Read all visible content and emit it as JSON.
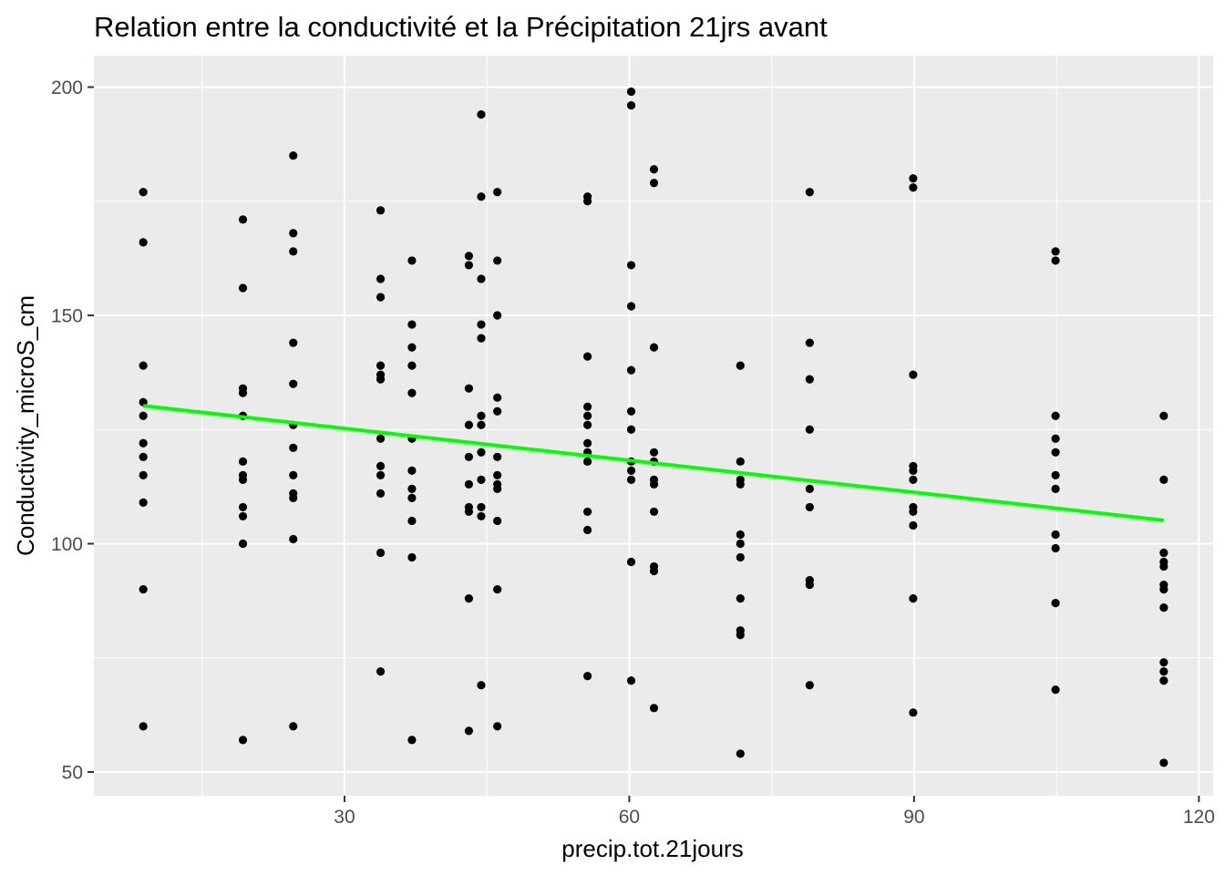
{
  "chart_data": {
    "type": "scatter",
    "title": "Relation entre la conductivité et la Précipitation 21jrs avant",
    "xlabel": "precip.tot.21jours",
    "ylabel": "Conductivity_microS_cm",
    "xlim": [
      3.6,
      121.5
    ],
    "ylim": [
      44.8,
      206.9
    ],
    "x_ticks": [
      30,
      60,
      90,
      120
    ],
    "y_ticks": [
      50,
      100,
      150,
      200
    ],
    "x_tick_labels": [
      "30",
      "60",
      "90",
      "120"
    ],
    "y_tick_labels": [
      "50",
      "100",
      "150",
      "200"
    ],
    "grid": true,
    "panel_background": "#ebebeb",
    "grid_color": "#ffffff",
    "point_color": "#000000",
    "fit_color": "#00ff00",
    "points": [
      {
        "x": 8.8,
        "y": 177
      },
      {
        "x": 8.8,
        "y": 166
      },
      {
        "x": 8.8,
        "y": 139
      },
      {
        "x": 8.8,
        "y": 131
      },
      {
        "x": 8.8,
        "y": 128
      },
      {
        "x": 8.8,
        "y": 122
      },
      {
        "x": 8.8,
        "y": 119
      },
      {
        "x": 8.8,
        "y": 115
      },
      {
        "x": 8.8,
        "y": 109
      },
      {
        "x": 8.8,
        "y": 90
      },
      {
        "x": 8.8,
        "y": 60
      },
      {
        "x": 19.3,
        "y": 171
      },
      {
        "x": 19.3,
        "y": 156
      },
      {
        "x": 19.3,
        "y": 134
      },
      {
        "x": 19.3,
        "y": 133
      },
      {
        "x": 19.3,
        "y": 128
      },
      {
        "x": 19.3,
        "y": 118
      },
      {
        "x": 19.3,
        "y": 115
      },
      {
        "x": 19.3,
        "y": 114
      },
      {
        "x": 19.3,
        "y": 108
      },
      {
        "x": 19.3,
        "y": 106
      },
      {
        "x": 19.3,
        "y": 100
      },
      {
        "x": 19.3,
        "y": 57
      },
      {
        "x": 24.6,
        "y": 185
      },
      {
        "x": 24.6,
        "y": 168
      },
      {
        "x": 24.6,
        "y": 164
      },
      {
        "x": 24.6,
        "y": 144
      },
      {
        "x": 24.6,
        "y": 135
      },
      {
        "x": 24.6,
        "y": 126
      },
      {
        "x": 24.6,
        "y": 121
      },
      {
        "x": 24.6,
        "y": 115
      },
      {
        "x": 24.6,
        "y": 111
      },
      {
        "x": 24.6,
        "y": 110
      },
      {
        "x": 24.6,
        "y": 101
      },
      {
        "x": 24.6,
        "y": 60
      },
      {
        "x": 33.8,
        "y": 173
      },
      {
        "x": 33.8,
        "y": 158
      },
      {
        "x": 33.8,
        "y": 154
      },
      {
        "x": 33.8,
        "y": 139
      },
      {
        "x": 33.8,
        "y": 137
      },
      {
        "x": 33.8,
        "y": 136
      },
      {
        "x": 33.8,
        "y": 123
      },
      {
        "x": 33.8,
        "y": 117
      },
      {
        "x": 33.8,
        "y": 115
      },
      {
        "x": 33.8,
        "y": 111
      },
      {
        "x": 33.8,
        "y": 98
      },
      {
        "x": 33.8,
        "y": 72
      },
      {
        "x": 37.1,
        "y": 162
      },
      {
        "x": 37.1,
        "y": 148
      },
      {
        "x": 37.1,
        "y": 143
      },
      {
        "x": 37.1,
        "y": 139
      },
      {
        "x": 37.1,
        "y": 133
      },
      {
        "x": 37.1,
        "y": 123
      },
      {
        "x": 37.1,
        "y": 116
      },
      {
        "x": 37.1,
        "y": 112
      },
      {
        "x": 37.1,
        "y": 110
      },
      {
        "x": 37.1,
        "y": 105
      },
      {
        "x": 37.1,
        "y": 97
      },
      {
        "x": 37.1,
        "y": 57
      },
      {
        "x": 43.1,
        "y": 163
      },
      {
        "x": 43.1,
        "y": 161
      },
      {
        "x": 43.1,
        "y": 134
      },
      {
        "x": 43.1,
        "y": 126
      },
      {
        "x": 43.1,
        "y": 119
      },
      {
        "x": 43.1,
        "y": 113
      },
      {
        "x": 43.1,
        "y": 108
      },
      {
        "x": 43.1,
        "y": 107
      },
      {
        "x": 43.1,
        "y": 88
      },
      {
        "x": 43.1,
        "y": 59
      },
      {
        "x": 44.4,
        "y": 194
      },
      {
        "x": 44.4,
        "y": 176
      },
      {
        "x": 44.4,
        "y": 158
      },
      {
        "x": 44.4,
        "y": 148
      },
      {
        "x": 44.4,
        "y": 145
      },
      {
        "x": 44.4,
        "y": 128
      },
      {
        "x": 44.4,
        "y": 126
      },
      {
        "x": 44.4,
        "y": 120
      },
      {
        "x": 44.4,
        "y": 114
      },
      {
        "x": 44.4,
        "y": 108
      },
      {
        "x": 44.4,
        "y": 106
      },
      {
        "x": 44.4,
        "y": 69
      },
      {
        "x": 46.1,
        "y": 177
      },
      {
        "x": 46.1,
        "y": 162
      },
      {
        "x": 46.1,
        "y": 150
      },
      {
        "x": 46.1,
        "y": 132
      },
      {
        "x": 46.1,
        "y": 129
      },
      {
        "x": 46.1,
        "y": 119
      },
      {
        "x": 46.1,
        "y": 115
      },
      {
        "x": 46.1,
        "y": 113
      },
      {
        "x": 46.1,
        "y": 112
      },
      {
        "x": 46.1,
        "y": 105
      },
      {
        "x": 46.1,
        "y": 90
      },
      {
        "x": 46.1,
        "y": 60
      },
      {
        "x": 55.6,
        "y": 176
      },
      {
        "x": 55.6,
        "y": 175
      },
      {
        "x": 55.6,
        "y": 141
      },
      {
        "x": 55.6,
        "y": 130
      },
      {
        "x": 55.6,
        "y": 128
      },
      {
        "x": 55.6,
        "y": 126
      },
      {
        "x": 55.6,
        "y": 122
      },
      {
        "x": 55.6,
        "y": 120
      },
      {
        "x": 55.6,
        "y": 118
      },
      {
        "x": 55.6,
        "y": 107
      },
      {
        "x": 55.6,
        "y": 103
      },
      {
        "x": 55.6,
        "y": 71
      },
      {
        "x": 60.2,
        "y": 199
      },
      {
        "x": 60.2,
        "y": 196
      },
      {
        "x": 60.2,
        "y": 161
      },
      {
        "x": 60.2,
        "y": 152
      },
      {
        "x": 60.2,
        "y": 138
      },
      {
        "x": 60.2,
        "y": 129
      },
      {
        "x": 60.2,
        "y": 125
      },
      {
        "x": 60.2,
        "y": 118
      },
      {
        "x": 60.2,
        "y": 116
      },
      {
        "x": 60.2,
        "y": 114
      },
      {
        "x": 60.2,
        "y": 96
      },
      {
        "x": 60.2,
        "y": 70
      },
      {
        "x": 62.6,
        "y": 182
      },
      {
        "x": 62.6,
        "y": 179
      },
      {
        "x": 62.6,
        "y": 143
      },
      {
        "x": 62.6,
        "y": 120
      },
      {
        "x": 62.6,
        "y": 118
      },
      {
        "x": 62.6,
        "y": 114
      },
      {
        "x": 62.6,
        "y": 113
      },
      {
        "x": 62.6,
        "y": 107
      },
      {
        "x": 62.6,
        "y": 95
      },
      {
        "x": 62.6,
        "y": 94
      },
      {
        "x": 62.6,
        "y": 64
      },
      {
        "x": 71.7,
        "y": 139
      },
      {
        "x": 71.7,
        "y": 118
      },
      {
        "x": 71.7,
        "y": 114
      },
      {
        "x": 71.7,
        "y": 113
      },
      {
        "x": 71.7,
        "y": 102
      },
      {
        "x": 71.7,
        "y": 100
      },
      {
        "x": 71.7,
        "y": 97
      },
      {
        "x": 71.7,
        "y": 88
      },
      {
        "x": 71.7,
        "y": 81
      },
      {
        "x": 71.7,
        "y": 80
      },
      {
        "x": 71.7,
        "y": 54
      },
      {
        "x": 79.0,
        "y": 177
      },
      {
        "x": 79.0,
        "y": 144
      },
      {
        "x": 79.0,
        "y": 136
      },
      {
        "x": 79.0,
        "y": 125
      },
      {
        "x": 79.0,
        "y": 112
      },
      {
        "x": 79.0,
        "y": 108
      },
      {
        "x": 79.0,
        "y": 92
      },
      {
        "x": 79.0,
        "y": 91
      },
      {
        "x": 79.0,
        "y": 69
      },
      {
        "x": 89.9,
        "y": 180
      },
      {
        "x": 89.9,
        "y": 178
      },
      {
        "x": 89.9,
        "y": 137
      },
      {
        "x": 89.9,
        "y": 117
      },
      {
        "x": 89.9,
        "y": 116
      },
      {
        "x": 89.9,
        "y": 114
      },
      {
        "x": 89.9,
        "y": 108
      },
      {
        "x": 89.9,
        "y": 107
      },
      {
        "x": 89.9,
        "y": 104
      },
      {
        "x": 89.9,
        "y": 88
      },
      {
        "x": 89.9,
        "y": 63
      },
      {
        "x": 104.9,
        "y": 164
      },
      {
        "x": 104.9,
        "y": 162
      },
      {
        "x": 104.9,
        "y": 128
      },
      {
        "x": 104.9,
        "y": 123
      },
      {
        "x": 104.9,
        "y": 120
      },
      {
        "x": 104.9,
        "y": 115
      },
      {
        "x": 104.9,
        "y": 112
      },
      {
        "x": 104.9,
        "y": 102
      },
      {
        "x": 104.9,
        "y": 99
      },
      {
        "x": 104.9,
        "y": 87
      },
      {
        "x": 104.9,
        "y": 68
      },
      {
        "x": 116.3,
        "y": 128
      },
      {
        "x": 116.3,
        "y": 114
      },
      {
        "x": 116.3,
        "y": 98
      },
      {
        "x": 116.3,
        "y": 96
      },
      {
        "x": 116.3,
        "y": 95
      },
      {
        "x": 116.3,
        "y": 91
      },
      {
        "x": 116.3,
        "y": 90
      },
      {
        "x": 116.3,
        "y": 86
      },
      {
        "x": 116.3,
        "y": 74
      },
      {
        "x": 116.3,
        "y": 72
      },
      {
        "x": 116.3,
        "y": 70
      },
      {
        "x": 116.3,
        "y": 52
      }
    ],
    "fit_line": {
      "x": [
        8.8,
        116.3
      ],
      "y": [
        130.2,
        105.1
      ]
    }
  }
}
